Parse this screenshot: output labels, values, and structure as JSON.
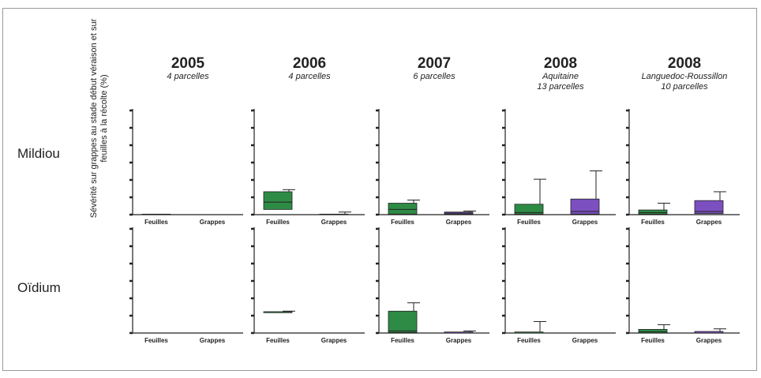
{
  "row_labels": [
    "Mildiou",
    "Oïdium"
  ],
  "y_axis_label": "Sévérité sur grappes au stade début véraison et sur feuilles à la récolte (%)",
  "columns": [
    {
      "year": "2005",
      "sub1": "4 parcelles",
      "sub2": ""
    },
    {
      "year": "2006",
      "sub1": "4 parcelles",
      "sub2": ""
    },
    {
      "year": "2007",
      "sub1": "6 parcelles",
      "sub2": ""
    },
    {
      "year": "2008",
      "sub1": "Aquitaine",
      "sub2": "13 parcelles"
    },
    {
      "year": "2008",
      "sub1": "Languedoc-Roussillon",
      "sub2": "10 parcelles"
    }
  ],
  "colors": {
    "feuilles": "#2e8b45",
    "grappes": "#7b4fc0",
    "axis": "#222222"
  },
  "chart_data": {
    "type": "box",
    "categories": [
      "Feuilles",
      "Grappes"
    ],
    "ylim": [
      0,
      100
    ],
    "y_tick_count": 7,
    "y_tick_labels_visible": false,
    "panels": [
      {
        "row": "Mildiou",
        "column": "2005",
        "boxes": [
          {
            "category": "Feuilles",
            "q1": 0,
            "median": 0,
            "q3": 0.5,
            "whisker_high": 0.5
          },
          {
            "category": "Grappes",
            "q1": 0,
            "median": 0,
            "q3": 0,
            "whisker_high": 0
          }
        ]
      },
      {
        "row": "Mildiou",
        "column": "2006",
        "boxes": [
          {
            "category": "Feuilles",
            "q1": 5,
            "median": 12,
            "q3": 22,
            "whisker_high": 24
          },
          {
            "category": "Grappes",
            "q1": 0,
            "median": 0,
            "q3": 0.5,
            "whisker_high": 2.5
          }
        ]
      },
      {
        "row": "Mildiou",
        "column": "2007",
        "boxes": [
          {
            "category": "Feuilles",
            "q1": 0.5,
            "median": 5,
            "q3": 11,
            "whisker_high": 14
          },
          {
            "category": "Grappes",
            "q1": 0.5,
            "median": 1.5,
            "q3": 2.5,
            "whisker_high": 3.5
          }
        ]
      },
      {
        "row": "Mildiou",
        "column": "2008 Aquitaine",
        "boxes": [
          {
            "category": "Feuilles",
            "q1": 0.5,
            "median": 2,
            "q3": 10,
            "whisker_high": 34
          },
          {
            "category": "Grappes",
            "q1": 0.5,
            "median": 3,
            "q3": 15,
            "whisker_high": 42
          }
        ]
      },
      {
        "row": "Mildiou",
        "column": "2008 Languedoc-Roussillon",
        "boxes": [
          {
            "category": "Feuilles",
            "q1": 0.5,
            "median": 2,
            "q3": 4.5,
            "whisker_high": 11
          },
          {
            "category": "Grappes",
            "q1": 1,
            "median": 3,
            "q3": 13.5,
            "whisker_high": 22
          }
        ]
      },
      {
        "row": "Oïdium",
        "column": "2005",
        "boxes": [
          {
            "category": "Feuilles",
            "q1": 0,
            "median": 0,
            "q3": 0,
            "whisker_high": 0
          },
          {
            "category": "Grappes",
            "q1": 0,
            "median": 0,
            "q3": 0,
            "whisker_high": 0
          }
        ]
      },
      {
        "row": "Oïdium",
        "column": "2006",
        "boxes": [
          {
            "category": "Feuilles",
            "q1": 19.5,
            "median": 20,
            "q3": 20.5,
            "whisker_high": 21
          },
          {
            "category": "Grappes",
            "q1": 0,
            "median": 0,
            "q3": 0,
            "whisker_high": 0
          }
        ]
      },
      {
        "row": "Oïdium",
        "column": "2007",
        "boxes": [
          {
            "category": "Feuilles",
            "q1": 0.5,
            "median": 2,
            "q3": 21,
            "whisker_high": 29
          },
          {
            "category": "Grappes",
            "q1": 0,
            "median": 0.5,
            "q3": 1,
            "whisker_high": 2
          }
        ]
      },
      {
        "row": "Oïdium",
        "column": "2008 Aquitaine",
        "boxes": [
          {
            "category": "Feuilles",
            "q1": 0,
            "median": 0.3,
            "q3": 1,
            "whisker_high": 11
          },
          {
            "category": "Grappes",
            "q1": 0,
            "median": 0,
            "q3": 0,
            "whisker_high": 0
          }
        ]
      },
      {
        "row": "Oïdium",
        "column": "2008 Languedoc-Roussillon",
        "boxes": [
          {
            "category": "Feuilles",
            "q1": 0,
            "median": 1,
            "q3": 3.5,
            "whisker_high": 8
          },
          {
            "category": "Grappes",
            "q1": 0,
            "median": 0.5,
            "q3": 1.5,
            "whisker_high": 4
          }
        ]
      }
    ]
  }
}
